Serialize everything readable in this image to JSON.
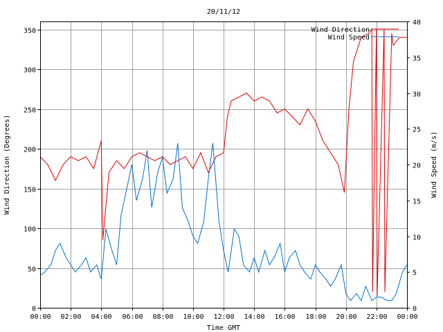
{
  "chart_data": {
    "type": "line",
    "title": "20/11/12",
    "xlabel": "Time GMT",
    "ylabel_left": "Wind Direction (Degrees)",
    "ylabel_right": "Wind Speed (m/s)",
    "x_ticks": [
      "00:00",
      "02:00",
      "04:00",
      "06:00",
      "08:00",
      "10:00",
      "12:00",
      "14:00",
      "16:00",
      "18:00",
      "20:00",
      "22:00",
      "00:00"
    ],
    "x_range_hours": [
      0,
      24
    ],
    "y_left_range": [
      0,
      360
    ],
    "y_left_ticks": [
      "0",
      "50",
      "100",
      "150",
      "200",
      "250",
      "300",
      "350"
    ],
    "y_right_range": [
      0,
      40
    ],
    "y_right_ticks": [
      "0",
      "5",
      "10",
      "15",
      "20",
      "25",
      "30",
      "35",
      "40"
    ],
    "grid": true,
    "legend_placement": "top-right",
    "colors": {
      "wind_direction": "#e00000",
      "wind_speed": "#0070d0",
      "grid": "#a0a0a0"
    },
    "series": [
      {
        "name": "Wind Direction",
        "axis": "left",
        "x_hours": [
          0,
          0.5,
          1,
          1.5,
          2,
          2.5,
          3,
          3.5,
          4,
          4.1,
          4.5,
          5,
          5.5,
          6,
          6.5,
          7,
          7.5,
          8,
          8.5,
          9,
          9.5,
          10,
          10.5,
          11,
          11.5,
          12,
          12.25,
          12.5,
          13,
          13.5,
          14,
          14.5,
          15,
          15.5,
          16,
          16.5,
          17,
          17.5,
          18,
          18.5,
          19,
          19.5,
          19.9,
          20.2,
          20.5,
          21,
          21.5,
          21.7,
          21.75,
          22,
          22.05,
          22.5,
          22.55,
          23,
          23.1,
          23.5,
          24
        ],
        "values": [
          190,
          180,
          160,
          180,
          190,
          185,
          190,
          175,
          210,
          85,
          170,
          185,
          175,
          190,
          195,
          190,
          185,
          190,
          180,
          185,
          190,
          175,
          195,
          170,
          190,
          195,
          240,
          260,
          265,
          270,
          260,
          265,
          260,
          245,
          250,
          240,
          230,
          250,
          235,
          210,
          195,
          180,
          145,
          250,
          310,
          340,
          345,
          350,
          20,
          350,
          15,
          350,
          20,
          345,
          330,
          340,
          340
        ]
      },
      {
        "name": "Wind Speed",
        "axis": "right",
        "x_hours": [
          0,
          0.3,
          0.7,
          1,
          1.3,
          1.7,
          2,
          2.3,
          2.7,
          3,
          3.3,
          3.7,
          4,
          4.3,
          4.7,
          5,
          5.3,
          5.7,
          6,
          6.3,
          6.7,
          7,
          7.3,
          7.7,
          8,
          8.3,
          8.7,
          9,
          9.3,
          9.7,
          10,
          10.3,
          10.7,
          11,
          11.3,
          11.7,
          12,
          12.3,
          12.7,
          13,
          13.3,
          13.7,
          14,
          14.3,
          14.7,
          15,
          15.3,
          15.7,
          16,
          16.3,
          16.7,
          17,
          17.3,
          17.7,
          18,
          18.3,
          18.7,
          19,
          19.3,
          19.7,
          20,
          20.3,
          20.7,
          21,
          21.3,
          21.7,
          22,
          22.3,
          22.7,
          23,
          23.3,
          23.7,
          24
        ],
        "values": [
          4.5,
          5,
          6,
          8,
          9,
          7,
          6,
          5,
          6,
          7,
          5,
          6,
          4,
          11,
          8,
          6,
          13,
          17,
          20,
          15,
          18,
          22,
          14,
          19,
          21,
          16,
          18,
          23,
          14,
          12,
          10,
          9,
          12,
          18,
          23,
          12,
          8,
          5,
          11,
          10,
          6,
          5,
          7,
          5,
          8,
          6,
          7,
          9,
          5,
          7,
          8,
          6,
          5,
          4,
          6,
          5,
          4,
          3,
          4,
          6,
          2,
          1,
          2,
          1,
          3,
          1,
          1.5,
          1.5,
          1,
          1,
          2,
          5,
          6
        ]
      }
    ]
  }
}
